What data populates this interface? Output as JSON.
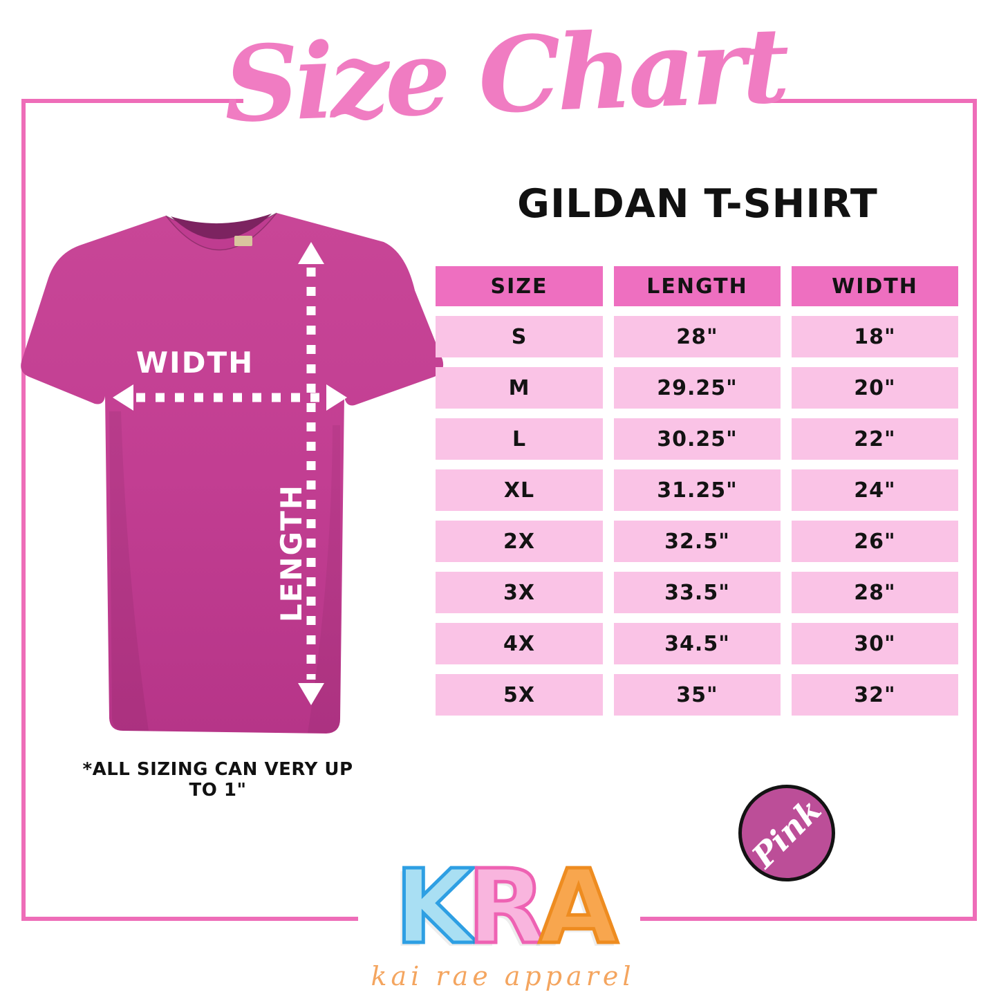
{
  "colors": {
    "frame_pink": "#ee6db8",
    "title_pink": "#f07cc2",
    "table_header_bg": "#ee6fc0",
    "table_row_bg": "#fac3e6",
    "shirt_pink": "#c23e92",
    "badge_bg": "#bc4e98",
    "tagline_orange": "#f4a55f",
    "text_black": "#111111"
  },
  "title": {
    "text": "Size Chart"
  },
  "product_heading": {
    "text": "GILDAN T-SHIRT"
  },
  "shirt_diagram": {
    "width_label": "WIDTH",
    "length_label": "LENGTH"
  },
  "table": {
    "columns": [
      "SIZE",
      "LENGTH",
      "WIDTH"
    ],
    "rows": [
      [
        "S",
        "28\"",
        "18\""
      ],
      [
        "M",
        "29.25\"",
        "20\""
      ],
      [
        "L",
        "30.25\"",
        "22\""
      ],
      [
        "XL",
        "31.25\"",
        "24\""
      ],
      [
        "2X",
        "32.5\"",
        "26\""
      ],
      [
        "3X",
        "33.5\"",
        "28\""
      ],
      [
        "4X",
        "34.5\"",
        "30\""
      ],
      [
        "5X",
        "35\"",
        "32\""
      ]
    ]
  },
  "footnote": {
    "text": "*ALL SIZING CAN VERY UP TO 1\""
  },
  "badge": {
    "text": "Pink"
  },
  "logo": {
    "letters": [
      {
        "char": "K",
        "fill": "#a9dff3",
        "outline": "#2e9fe3"
      },
      {
        "char": "R",
        "fill": "#f9b5de",
        "outline": "#ee62b3"
      },
      {
        "char": "A",
        "fill": "#f8a64e",
        "outline": "#ee8c20"
      }
    ],
    "tagline": "kai rae apparel"
  }
}
